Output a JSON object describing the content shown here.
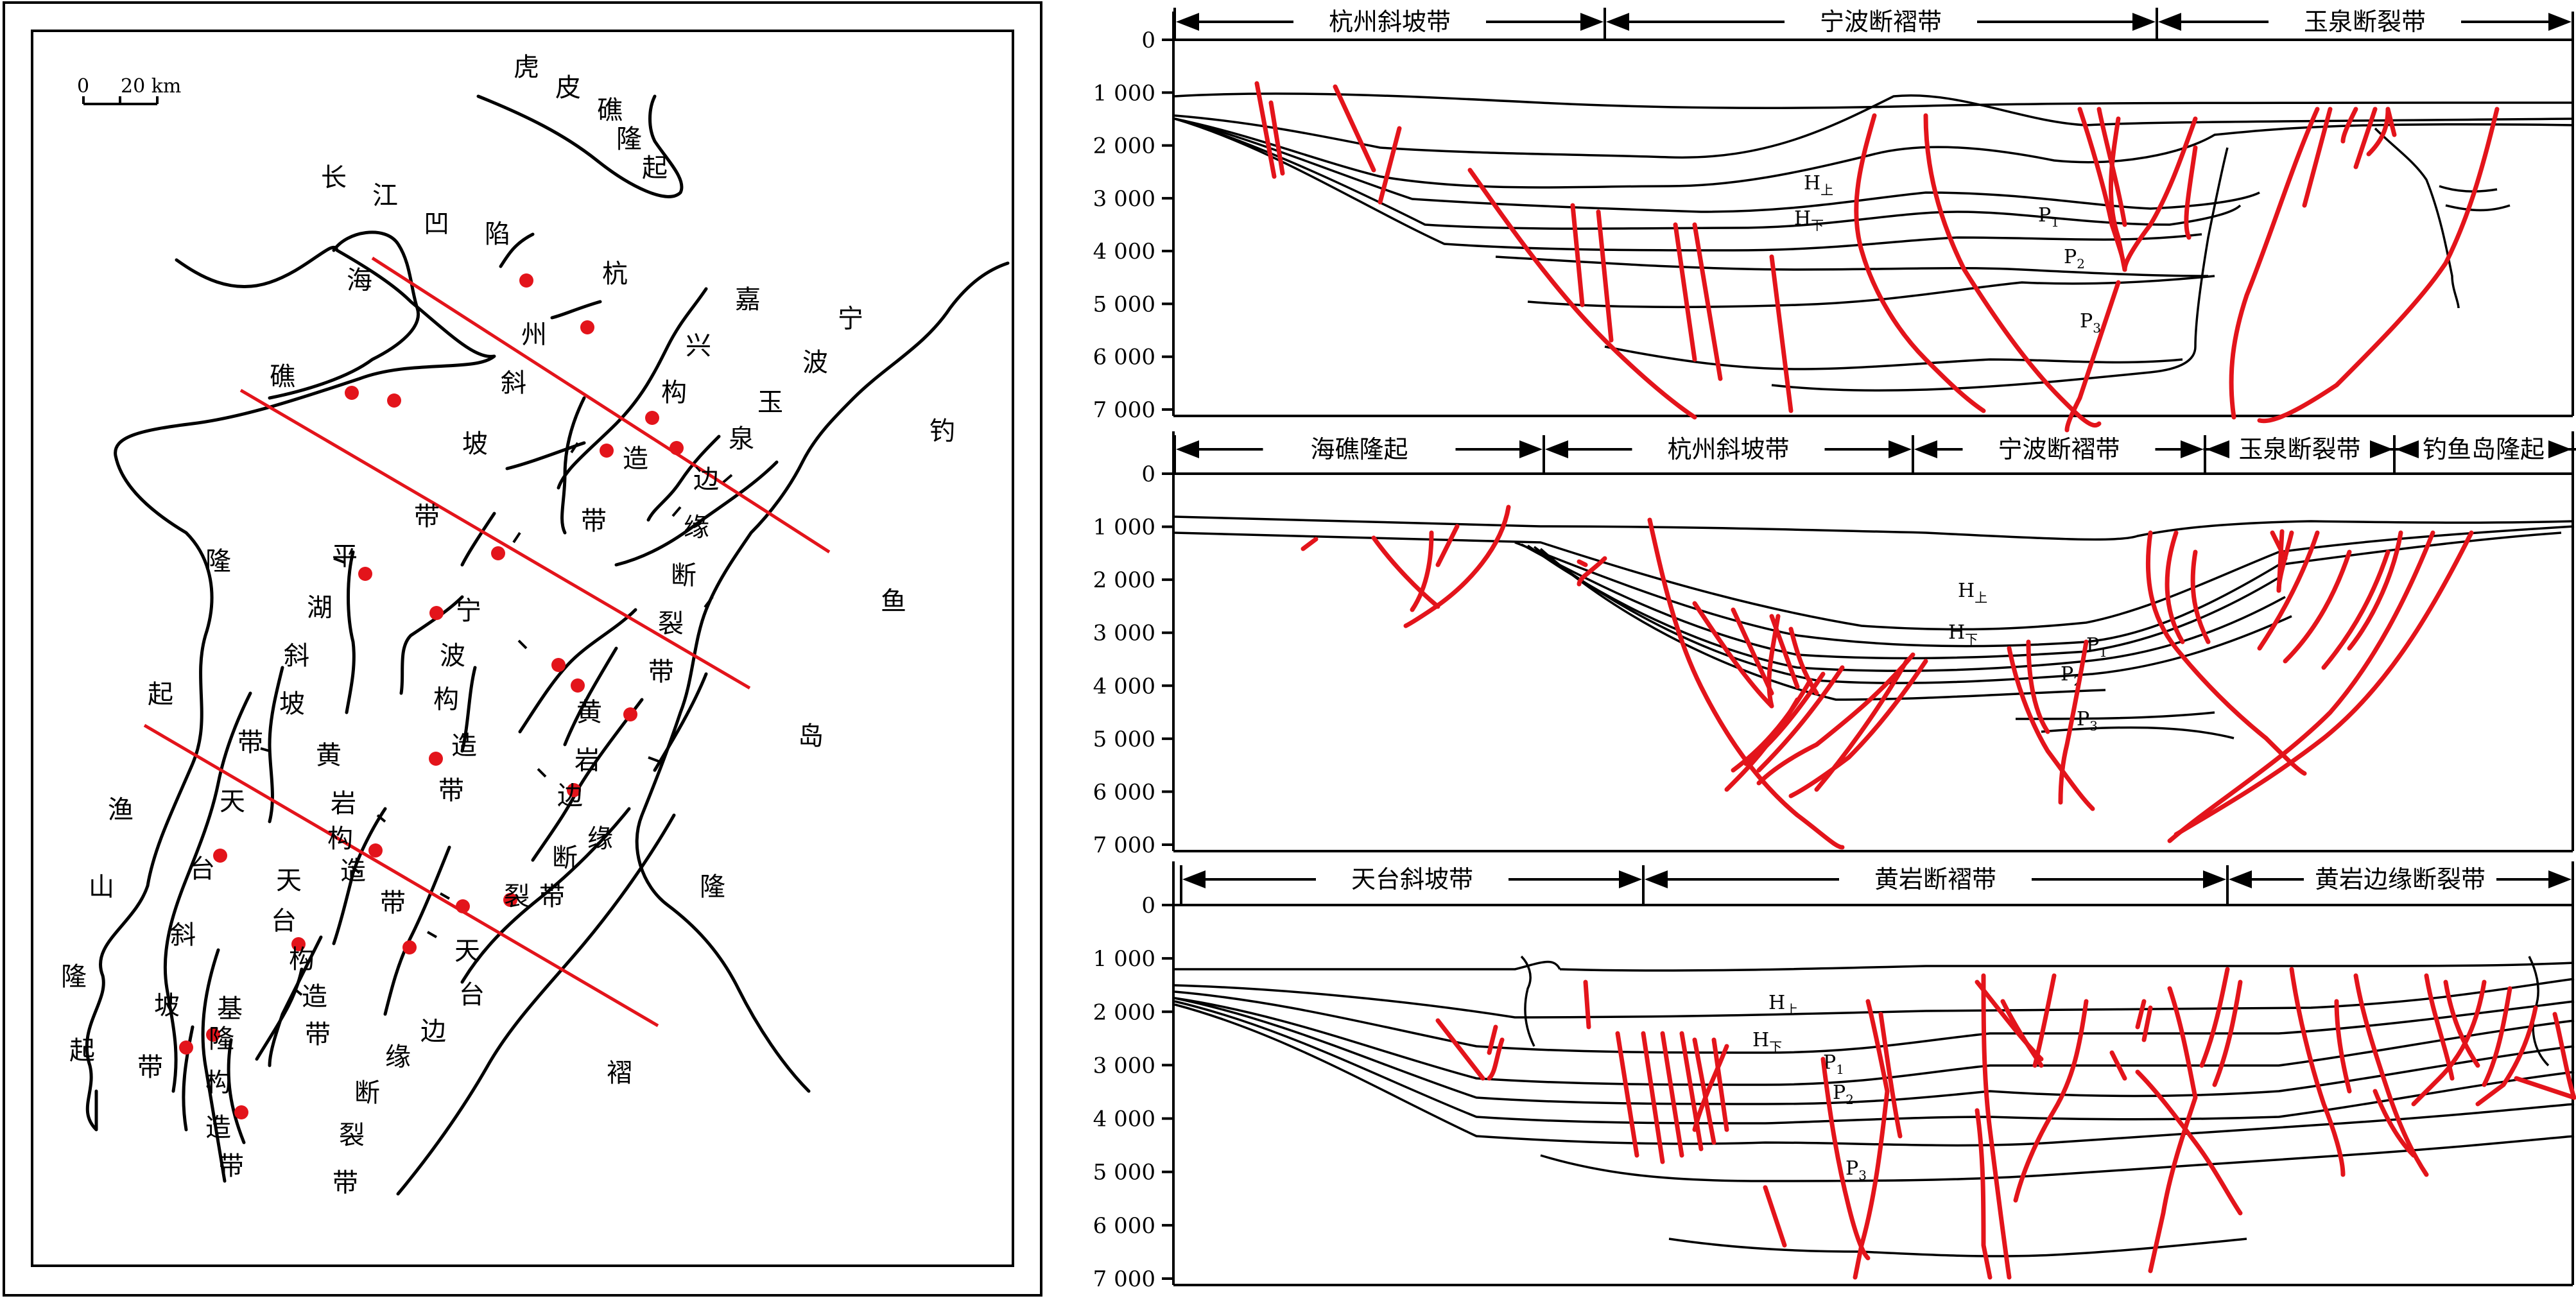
{
  "map": {
    "scale": {
      "zero": "0",
      "value": "20 km"
    },
    "labels": [
      {
        "id": "huqiao-uplift",
        "chars": [
          "虎",
          "皮",
          "礁",
          "隆",
          "起"
        ]
      },
      {
        "id": "changjiang-depression",
        "chars": [
          "长",
          "江",
          "凹",
          "陷"
        ]
      },
      {
        "id": "haijiao",
        "chars": [
          "海",
          "礁"
        ]
      },
      {
        "id": "hangzhou-slope",
        "chars": [
          "杭",
          "州",
          "斜",
          "坡",
          "带"
        ]
      },
      {
        "id": "jiaxing-structure",
        "chars": [
          "嘉",
          "兴",
          "构",
          "造",
          "带"
        ]
      },
      {
        "id": "ningbo",
        "chars": [
          "宁",
          "波"
        ]
      },
      {
        "id": "yuquan-margin",
        "chars": [
          "玉",
          "泉",
          "边",
          "缘",
          "断",
          "裂",
          "带"
        ]
      },
      {
        "id": "diaoyudao",
        "chars": [
          "钓",
          "鱼",
          "岛",
          "隆",
          "褶"
        ]
      },
      {
        "id": "longqi",
        "chars": [
          "隆",
          "起"
        ]
      },
      {
        "id": "pinghu-slope",
        "chars": [
          "平",
          "湖",
          "斜",
          "坡",
          "带"
        ]
      },
      {
        "id": "ningbo-structure",
        "chars": [
          "宁",
          "波",
          "构",
          "造",
          "带"
        ]
      },
      {
        "id": "huangyan-margin",
        "chars": [
          "黄",
          "岩",
          "边",
          "缘",
          "断",
          "裂",
          "带"
        ]
      },
      {
        "id": "huangyan-structure",
        "chars": [
          "黄",
          "岩",
          "构",
          "造",
          "带"
        ]
      },
      {
        "id": "tiantai-slope",
        "chars": [
          "天",
          "台",
          "斜",
          "坡",
          "带"
        ]
      },
      {
        "id": "yushan-uplift",
        "chars": [
          "渔",
          "山",
          "隆",
          "起"
        ]
      },
      {
        "id": "tiantai-structure",
        "chars": [
          "天",
          "台",
          "构",
          "造",
          "带"
        ]
      },
      {
        "id": "tiantai-margin",
        "chars": [
          "天",
          "台",
          "边",
          "缘",
          "断",
          "裂",
          "带"
        ]
      },
      {
        "id": "jilong-structure",
        "chars": [
          "基",
          "隆",
          "构",
          "造",
          "带"
        ]
      }
    ]
  },
  "sections": [
    {
      "id": "section-1",
      "bands": [
        "杭州斜坡带",
        "宁波断褶带",
        "玉泉断裂带"
      ],
      "depth_ticks": [
        "0",
        "1 000",
        "2 000",
        "3 000",
        "4 000",
        "5 000",
        "6 000",
        "7 000"
      ],
      "units": {
        "h_upper": "H",
        "h_upper_sub": "上",
        "h_lower": "H",
        "h_lower_sub": "下",
        "p1": "P",
        "p1_sub": "1",
        "p2": "P",
        "p2_sub": "2",
        "p3": "P",
        "p3_sub": "3"
      }
    },
    {
      "id": "section-2",
      "bands": [
        "海礁隆起",
        "杭州斜坡带",
        "宁波断褶带",
        "玉泉断裂带",
        "钓鱼岛隆起"
      ],
      "depth_ticks": [
        "0",
        "1 000",
        "2 000",
        "3 000",
        "4 000",
        "5 000",
        "6 000",
        "7 000"
      ],
      "units": {
        "h_upper": "H",
        "h_upper_sub": "上",
        "h_lower": "H",
        "h_lower_sub": "下",
        "p1": "P",
        "p1_sub": "1",
        "p2": "P",
        "p2_sub": "2",
        "p3": "P",
        "p3_sub": "3"
      }
    },
    {
      "id": "section-3",
      "bands": [
        "天台斜坡带",
        "黄岩断褶带",
        "黄岩边缘断裂带"
      ],
      "depth_ticks": [
        "0",
        "1 000",
        "2 000",
        "3 000",
        "4 000",
        "5 000",
        "6 000",
        "7 000"
      ],
      "units": {
        "h_upper": "H",
        "h_upper_sub": "上",
        "h_lower": "H",
        "h_lower_sub": "下",
        "p1": "P",
        "p1_sub": "1",
        "p2": "P",
        "p2_sub": "2",
        "p3": "P",
        "p3_sub": "3"
      }
    }
  ],
  "colors": {
    "fault": "#e3141b",
    "line": "#000000"
  }
}
